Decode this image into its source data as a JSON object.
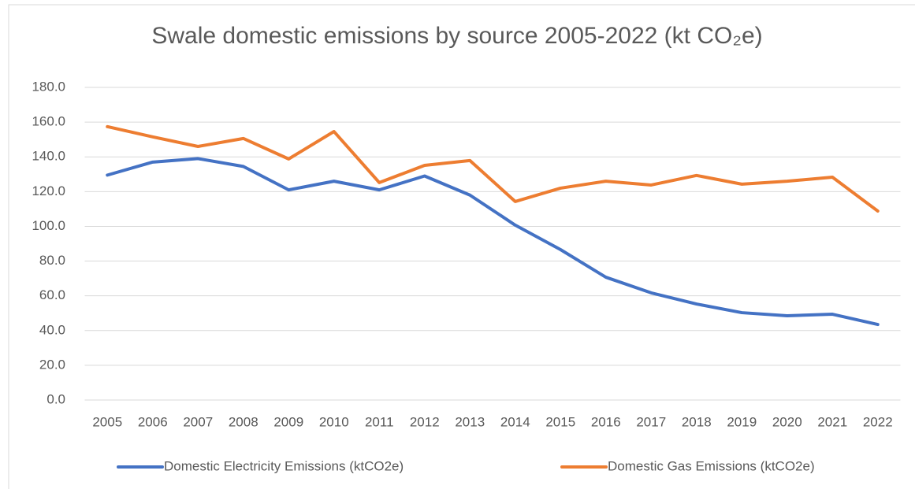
{
  "chart_data": {
    "type": "line",
    "title": "Swale domestic emissions by source 2005-2022 (kt CO₂e)",
    "categories": [
      "2005",
      "2006",
      "2007",
      "2008",
      "2009",
      "2010",
      "2011",
      "2012",
      "2013",
      "2014",
      "2015",
      "2016",
      "2017",
      "2018",
      "2019",
      "2020",
      "2021",
      "2022"
    ],
    "series": [
      {
        "name": "Domestic Electricity Emissions (ktCO2e)",
        "color": "#4472c4",
        "values": [
          129.5,
          137,
          139,
          134.5,
          121,
          126,
          121,
          129,
          118,
          100.7,
          86.6,
          70.7,
          61.7,
          55.3,
          50.3,
          48.5,
          49.4,
          43.5
        ]
      },
      {
        "name": "Domestic Gas Emissions (ktCO2e)",
        "color": "#ed7d31",
        "values": [
          157.4,
          151.5,
          146,
          150.6,
          138.8,
          154.6,
          125.2,
          135.1,
          137.9,
          114.3,
          122,
          126,
          123.8,
          129.3,
          124.3,
          126,
          128.3,
          108.8
        ]
      }
    ],
    "ylim": [
      0,
      180
    ],
    "yticks": [
      {
        "value": 0,
        "label": "0.0"
      },
      {
        "value": 20,
        "label": "20.0"
      },
      {
        "value": 40,
        "label": "40.0"
      },
      {
        "value": 60,
        "label": "60.0"
      },
      {
        "value": 80,
        "label": "80.0"
      },
      {
        "value": 100,
        "label": "100.0"
      },
      {
        "value": 120,
        "label": "120.0"
      },
      {
        "value": 140,
        "label": "140.0"
      },
      {
        "value": 160,
        "label": "160.0"
      },
      {
        "value": 180,
        "label": "180.0"
      }
    ],
    "grid": true,
    "legend": "bottom"
  }
}
